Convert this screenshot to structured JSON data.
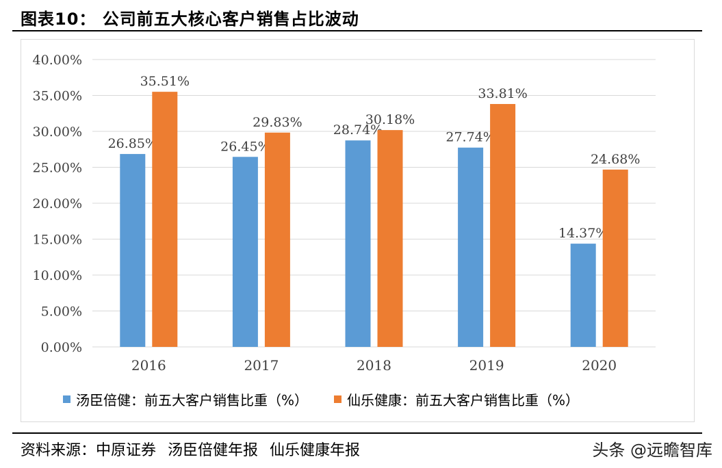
{
  "header": {
    "title": "图表10： 公司前五大核心客户销售占比波动"
  },
  "footer": {
    "source": "资料来源：中原证券   汤臣倍健年报   仙乐健康年报",
    "watermark": "头条 @远瞻智库"
  },
  "colors": {
    "series1": "#5b9bd5",
    "series2": "#ed7d31",
    "grid": "#d9d9d9"
  },
  "chart_data": {
    "type": "bar",
    "categories": [
      "2016",
      "2017",
      "2018",
      "2019",
      "2020"
    ],
    "series": [
      {
        "name": "汤臣倍健：前五大客户销售比重（%）",
        "values": [
          26.85,
          26.45,
          28.74,
          27.74,
          14.37
        ],
        "labels": [
          "26.85%",
          "26.45%",
          "28.74%",
          "27.74%",
          "14.37%"
        ]
      },
      {
        "name": "仙乐健康：前五大客户销售比重（%）",
        "values": [
          35.51,
          29.83,
          30.18,
          33.81,
          24.68
        ],
        "labels": [
          "35.51%",
          "29.83%",
          "30.18%",
          "33.81%",
          "24.68%"
        ]
      }
    ],
    "ylim": [
      0,
      40
    ],
    "yticks": [
      0,
      5,
      10,
      15,
      20,
      25,
      30,
      35,
      40
    ],
    "ytick_labels": [
      "0.00%",
      "5.00%",
      "10.00%",
      "15.00%",
      "20.00%",
      "25.00%",
      "30.00%",
      "35.00%",
      "40.00%"
    ],
    "grid": true,
    "legend": "bottom"
  }
}
